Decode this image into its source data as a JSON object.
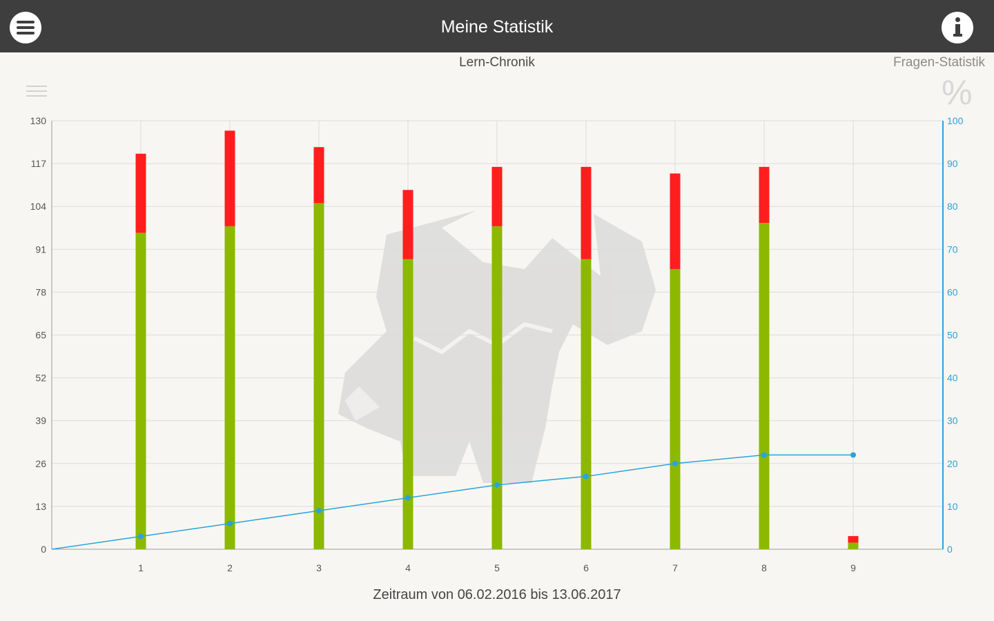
{
  "header": {
    "title": "Meine Statistik",
    "menu_icon": "hamburger-menu-icon",
    "info_icon": "info-icon",
    "background": "#3e3e3e"
  },
  "tabs": {
    "left_label": "Lern-Chronik",
    "right_label": "Fragen-Statistik"
  },
  "toolbar": {
    "list_icon": "list-icon",
    "percent_symbol": "%"
  },
  "footer": {
    "period_text": "Zeitraum von 06.02.2016 bis 13.06.2017"
  },
  "chart_data": {
    "type": "bar",
    "stacked": true,
    "categories": [
      "1",
      "2",
      "3",
      "4",
      "5",
      "6",
      "7",
      "8",
      "9"
    ],
    "series": [
      {
        "color": "#8cb800",
        "values": [
          96,
          98,
          105,
          88,
          98,
          88,
          85,
          99,
          2
        ]
      },
      {
        "color": "#ff1e1e",
        "values": [
          24,
          29,
          17,
          21,
          18,
          28,
          29,
          17,
          2
        ]
      },
      {
        "type": "line",
        "axis": "right",
        "color": "#29a3db",
        "values": [
          3,
          6,
          9,
          12,
          15,
          17,
          20,
          22,
          22
        ]
      }
    ],
    "y_left": {
      "ylim": [
        0,
        130
      ],
      "ticks": [
        0,
        13,
        26,
        39,
        52,
        65,
        78,
        91,
        104,
        117,
        130
      ]
    },
    "y_right": {
      "ylim": [
        0,
        100
      ],
      "ticks": [
        0,
        10,
        20,
        30,
        40,
        50,
        60,
        70,
        80,
        90,
        100
      ]
    },
    "grid": true
  }
}
